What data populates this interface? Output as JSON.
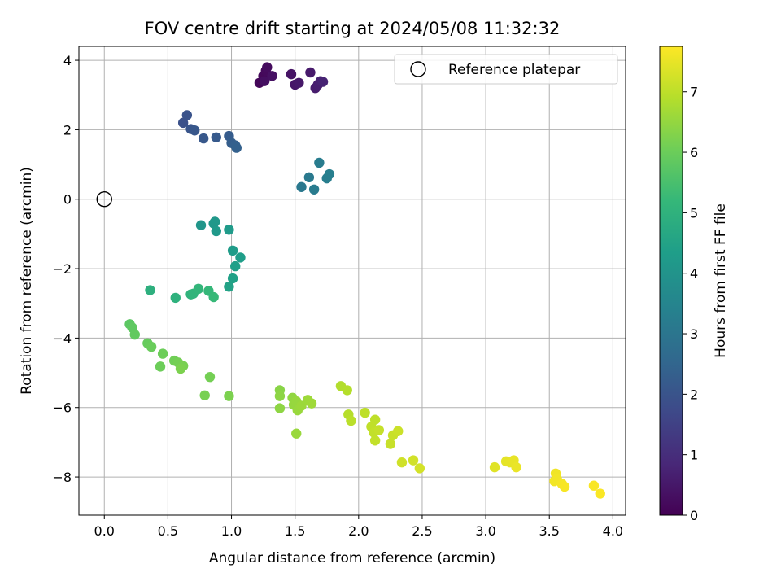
{
  "chart_data": {
    "type": "scatter",
    "title": "FOV centre drift starting at 2024/05/08 11:32:32",
    "xlabel": "Angular distance from reference (arcmin)",
    "ylabel": "Rotation from reference (arcmin)",
    "colorbar_label": "Hours from first FF file",
    "colormap": "viridis",
    "xlim": [
      -0.2,
      4.1
    ],
    "ylim": [
      -9.1,
      4.4
    ],
    "clim": [
      0,
      7.75
    ],
    "xticks": [
      0.0,
      0.5,
      1.0,
      1.5,
      2.0,
      2.5,
      3.0,
      3.5,
      4.0
    ],
    "xtick_labels": [
      "0.0",
      "0.5",
      "1.0",
      "1.5",
      "2.0",
      "2.5",
      "3.0",
      "3.5",
      "4.0"
    ],
    "yticks": [
      -8,
      -6,
      -4,
      -2,
      0,
      2,
      4
    ],
    "ytick_labels": [
      "−8",
      "−6",
      "−4",
      "−2",
      "0",
      "2",
      "4"
    ],
    "cticks": [
      0,
      1,
      2,
      3,
      4,
      5,
      6,
      7
    ],
    "ctick_labels": [
      "0",
      "1",
      "2",
      "3",
      "4",
      "5",
      "6",
      "7"
    ],
    "grid": true,
    "legend": {
      "position": "upper right",
      "entries": [
        "Reference platepar"
      ]
    },
    "reference": {
      "name": "Reference platepar",
      "x": 0.0,
      "y": 0.0
    },
    "points": [
      {
        "x": 1.22,
        "y": 3.35,
        "t": 0.1
      },
      {
        "x": 1.25,
        "y": 3.55,
        "t": 0.15
      },
      {
        "x": 1.27,
        "y": 3.7,
        "t": 0.2
      },
      {
        "x": 1.28,
        "y": 3.8,
        "t": 0.25
      },
      {
        "x": 1.26,
        "y": 3.4,
        "t": 0.3
      },
      {
        "x": 1.32,
        "y": 3.55,
        "t": 0.35
      },
      {
        "x": 1.47,
        "y": 3.6,
        "t": 0.4
      },
      {
        "x": 1.5,
        "y": 3.3,
        "t": 0.45
      },
      {
        "x": 1.53,
        "y": 3.35,
        "t": 0.5
      },
      {
        "x": 1.62,
        "y": 3.65,
        "t": 0.55
      },
      {
        "x": 1.66,
        "y": 3.2,
        "t": 0.6
      },
      {
        "x": 1.68,
        "y": 3.3,
        "t": 0.65
      },
      {
        "x": 1.7,
        "y": 3.4,
        "t": 0.7
      },
      {
        "x": 1.72,
        "y": 3.38,
        "t": 0.75
      },
      {
        "x": 0.62,
        "y": 2.2,
        "t": 1.95
      },
      {
        "x": 0.65,
        "y": 2.42,
        "t": 2.0
      },
      {
        "x": 0.68,
        "y": 2.02,
        "t": 2.05
      },
      {
        "x": 0.71,
        "y": 1.98,
        "t": 2.1
      },
      {
        "x": 0.78,
        "y": 1.75,
        "t": 2.15
      },
      {
        "x": 0.88,
        "y": 1.78,
        "t": 2.2
      },
      {
        "x": 0.98,
        "y": 1.82,
        "t": 2.25
      },
      {
        "x": 1.0,
        "y": 1.62,
        "t": 2.3
      },
      {
        "x": 1.03,
        "y": 1.55,
        "t": 2.35
      },
      {
        "x": 1.04,
        "y": 1.48,
        "t": 2.4
      },
      {
        "x": 1.55,
        "y": 0.35,
        "t": 3.1
      },
      {
        "x": 1.61,
        "y": 0.63,
        "t": 3.15
      },
      {
        "x": 1.65,
        "y": 0.28,
        "t": 3.2
      },
      {
        "x": 1.69,
        "y": 1.05,
        "t": 3.25
      },
      {
        "x": 1.75,
        "y": 0.6,
        "t": 3.3
      },
      {
        "x": 1.77,
        "y": 0.72,
        "t": 3.35
      },
      {
        "x": 0.76,
        "y": -0.75,
        "t": 4.05
      },
      {
        "x": 0.86,
        "y": -0.7,
        "t": 4.1
      },
      {
        "x": 0.87,
        "y": -0.65,
        "t": 4.12
      },
      {
        "x": 0.88,
        "y": -0.92,
        "t": 4.15
      },
      {
        "x": 0.98,
        "y": -0.88,
        "t": 4.2
      },
      {
        "x": 1.01,
        "y": -1.48,
        "t": 4.25
      },
      {
        "x": 1.07,
        "y": -1.68,
        "t": 4.3
      },
      {
        "x": 1.03,
        "y": -1.93,
        "t": 4.35
      },
      {
        "x": 1.01,
        "y": -2.28,
        "t": 4.4
      },
      {
        "x": 0.98,
        "y": -2.52,
        "t": 4.45
      },
      {
        "x": 0.36,
        "y": -2.62,
        "t": 4.9
      },
      {
        "x": 0.56,
        "y": -2.84,
        "t": 4.95
      },
      {
        "x": 0.68,
        "y": -2.74,
        "t": 5.0
      },
      {
        "x": 0.7,
        "y": -2.72,
        "t": 5.05
      },
      {
        "x": 0.74,
        "y": -2.58,
        "t": 5.1
      },
      {
        "x": 0.82,
        "y": -2.64,
        "t": 5.15
      },
      {
        "x": 0.86,
        "y": -2.82,
        "t": 5.2
      },
      {
        "x": 0.2,
        "y": -3.6,
        "t": 5.75
      },
      {
        "x": 0.22,
        "y": -3.7,
        "t": 5.8
      },
      {
        "x": 0.24,
        "y": -3.9,
        "t": 5.85
      },
      {
        "x": 0.34,
        "y": -4.15,
        "t": 5.9
      },
      {
        "x": 0.37,
        "y": -4.25,
        "t": 5.95
      },
      {
        "x": 0.46,
        "y": -4.45,
        "t": 6.0
      },
      {
        "x": 0.55,
        "y": -4.65,
        "t": 6.05
      },
      {
        "x": 0.58,
        "y": -4.7,
        "t": 6.1
      },
      {
        "x": 0.62,
        "y": -4.8,
        "t": 6.15
      },
      {
        "x": 0.6,
        "y": -4.88,
        "t": 6.2
      },
      {
        "x": 0.44,
        "y": -4.82,
        "t": 6.0
      },
      {
        "x": 0.83,
        "y": -5.12,
        "t": 6.1
      },
      {
        "x": 0.79,
        "y": -5.65,
        "t": 6.15
      },
      {
        "x": 0.98,
        "y": -5.67,
        "t": 6.2
      },
      {
        "x": 1.38,
        "y": -5.5,
        "t": 6.35
      },
      {
        "x": 1.38,
        "y": -5.67,
        "t": 6.4
      },
      {
        "x": 1.38,
        "y": -6.02,
        "t": 6.42
      },
      {
        "x": 1.48,
        "y": -5.72,
        "t": 6.45
      },
      {
        "x": 1.49,
        "y": -5.92,
        "t": 6.5
      },
      {
        "x": 1.51,
        "y": -5.82,
        "t": 6.52
      },
      {
        "x": 1.52,
        "y": -6.08,
        "t": 6.55
      },
      {
        "x": 1.55,
        "y": -5.95,
        "t": 6.58
      },
      {
        "x": 1.6,
        "y": -5.78,
        "t": 6.6
      },
      {
        "x": 1.63,
        "y": -5.88,
        "t": 6.62
      },
      {
        "x": 1.51,
        "y": -6.75,
        "t": 6.55
      },
      {
        "x": 1.86,
        "y": -5.38,
        "t": 6.85
      },
      {
        "x": 1.91,
        "y": -5.5,
        "t": 6.88
      },
      {
        "x": 1.92,
        "y": -6.2,
        "t": 6.9
      },
      {
        "x": 1.94,
        "y": -6.38,
        "t": 6.95
      },
      {
        "x": 2.05,
        "y": -6.15,
        "t": 7.0
      },
      {
        "x": 2.13,
        "y": -6.35,
        "t": 7.0
      },
      {
        "x": 2.1,
        "y": -6.55,
        "t": 7.02
      },
      {
        "x": 2.12,
        "y": -6.72,
        "t": 7.05
      },
      {
        "x": 2.13,
        "y": -6.95,
        "t": 7.05
      },
      {
        "x": 2.16,
        "y": -6.65,
        "t": 7.08
      },
      {
        "x": 2.25,
        "y": -7.05,
        "t": 7.1
      },
      {
        "x": 2.27,
        "y": -6.8,
        "t": 7.12
      },
      {
        "x": 2.31,
        "y": -6.68,
        "t": 7.15
      },
      {
        "x": 2.34,
        "y": -7.58,
        "t": 7.2
      },
      {
        "x": 2.43,
        "y": -7.52,
        "t": 7.22
      },
      {
        "x": 2.48,
        "y": -7.75,
        "t": 7.25
      },
      {
        "x": 3.07,
        "y": -7.72,
        "t": 7.4
      },
      {
        "x": 3.16,
        "y": -7.55,
        "t": 7.45
      },
      {
        "x": 3.19,
        "y": -7.58,
        "t": 7.48
      },
      {
        "x": 3.22,
        "y": -7.52,
        "t": 7.5
      },
      {
        "x": 3.24,
        "y": -7.72,
        "t": 7.52
      },
      {
        "x": 3.55,
        "y": -7.9,
        "t": 7.6
      },
      {
        "x": 3.56,
        "y": -8.05,
        "t": 7.62
      },
      {
        "x": 3.54,
        "y": -8.12,
        "t": 7.62
      },
      {
        "x": 3.6,
        "y": -8.2,
        "t": 7.65
      },
      {
        "x": 3.62,
        "y": -8.28,
        "t": 7.68
      },
      {
        "x": 3.85,
        "y": -8.25,
        "t": 7.7
      },
      {
        "x": 3.9,
        "y": -8.48,
        "t": 7.72
      }
    ]
  }
}
